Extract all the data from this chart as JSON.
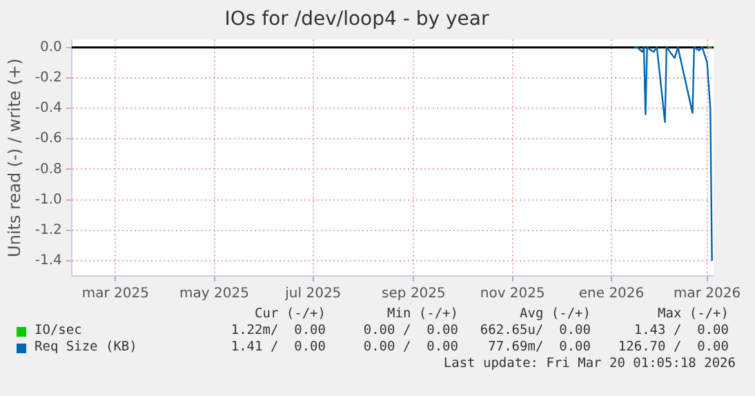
{
  "chart_data": {
    "type": "line",
    "title": "IOs for /dev/loop4 - by year",
    "ylabel": "Units read (-) / write (+)",
    "xlim": [
      "2025-02-02",
      "2026-03-05"
    ],
    "xticks": [
      {
        "value": "2025-03-01",
        "label": "mar 2025"
      },
      {
        "value": "2025-05-01",
        "label": "may 2025"
      },
      {
        "value": "2025-07-01",
        "label": "jul 2025"
      },
      {
        "value": "2025-09-01",
        "label": "sep 2025"
      },
      {
        "value": "2025-11-01",
        "label": "nov 2025"
      },
      {
        "value": "2026-01-01",
        "label": "ene 2026"
      },
      {
        "value": "2026-03-01",
        "label": "mar 2026"
      }
    ],
    "ylim": [
      -1.5,
      0.05
    ],
    "yticks": [
      {
        "value": 0,
        "label": "0.0"
      },
      {
        "value": -0.2,
        "label": "-0.2"
      },
      {
        "value": -0.4,
        "label": "-0.4"
      },
      {
        "value": -0.6,
        "label": "-0.6"
      },
      {
        "value": -0.8,
        "label": "-0.8"
      },
      {
        "value": -1,
        "label": "-1.0"
      },
      {
        "value": -1.2,
        "label": "-1.2"
      },
      {
        "value": -1.4,
        "label": "-1.4"
      }
    ],
    "grid": true,
    "legend": "bottom",
    "marker": "none",
    "line_style": "solid",
    "ref_lines": [
      {
        "axis": "y",
        "value": 0,
        "color": "#000000"
      }
    ],
    "series": [
      {
        "name": "IO/sec",
        "color": "#00cc00",
        "x": [
          "2026-03-01",
          "2026-03-04"
        ],
        "values": [
          0,
          0
        ]
      },
      {
        "name": "Req Size (KB)",
        "color": "#0066b3",
        "x": [
          "2026-01-15",
          "2026-01-17",
          "2026-01-20",
          "2026-01-21",
          "2026-01-22",
          "2026-01-23",
          "2026-01-27",
          "2026-01-29",
          "2026-02-03",
          "2026-02-04",
          "2026-02-09",
          "2026-02-11",
          "2026-02-20",
          "2026-02-21",
          "2026-02-24",
          "2026-02-26",
          "2026-03-01",
          "2026-03-02",
          "2026-03-03",
          "2026-03-04"
        ],
        "values": [
          0,
          0,
          -0.03,
          0,
          -0.44,
          0,
          -0.03,
          0,
          -0.49,
          0,
          -0.07,
          0,
          -0.43,
          0,
          -0.02,
          0,
          -0.1,
          -0.25,
          -0.4,
          -1.4
        ]
      }
    ],
    "annotations": [
      "Cur (-/+)",
      "Min (-/+)",
      "Avg (-/+)",
      "Max (-/+)",
      "1.22m/  0.00",
      "0.00 /  0.00",
      "662.65u/  0.00",
      "1.43 /  0.00",
      "1.41 /  0.00",
      "0.00 /  0.00",
      "77.69m/  0.00",
      "126.70 /  0.00",
      "Last update: Fri Mar 20 01:05:18 2026"
    ]
  }
}
